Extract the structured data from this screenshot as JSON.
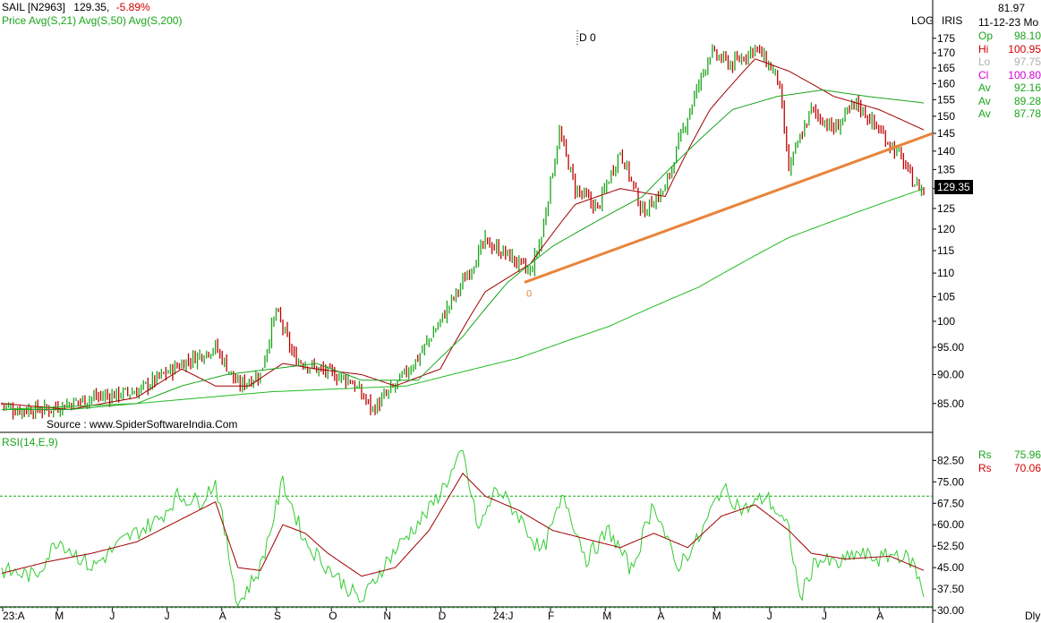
{
  "header": {
    "symbol": "SAIL [N2963]",
    "last": "129.35,",
    "change": "-5.89%",
    "price_label": "Price",
    "avg21_label": "Avg(S,21)",
    "avg50_label": "Avg(S,50)",
    "avg200_label": "Avg(S,200)",
    "marker": "D 0"
  },
  "top_right": {
    "log_label": "LOG",
    "iris_label": "IRIS",
    "volume_value": "81.97",
    "date": "11-12-23 Mo",
    "period": "Dly"
  },
  "ohlc_panel": [
    {
      "label": "Op",
      "value": "98.10",
      "color": "#1aa51a"
    },
    {
      "label": "Hi",
      "value": "100.95",
      "color": "#d00000"
    },
    {
      "label": "Lo",
      "value": "97.75",
      "color": "#b0b0b0"
    },
    {
      "label": "Cl",
      "value": "100.80",
      "color": "#d000d0"
    },
    {
      "label": "Av",
      "value": "92.16",
      "color": "#1aa51a"
    },
    {
      "label": "Av",
      "value": "89.28",
      "color": "#1aa51a"
    },
    {
      "label": "Av",
      "value": "87.78",
      "color": "#1aa51a"
    }
  ],
  "rsi_panel": {
    "label": "RSI(14,E,9)",
    "rs1_label": "Rs",
    "rs1_value": "75.96",
    "rs2_label": "Rs",
    "rs2_value": "70.06"
  },
  "source": "Source : www.SpiderSoftwareIndia.Com",
  "last_price_tag": "129.35",
  "trendline_label": "0",
  "colors": {
    "up": "#1aa51a",
    "down": "#c00000",
    "ma21": "#a00000",
    "ma50": "#1aa51a",
    "ma200": "#22bb22",
    "trendline": "#e8843a",
    "rsi": "#33cc33",
    "rsi_signal": "#a00000",
    "guide": "#1aa51a"
  },
  "chart_data": [
    {
      "type": "candlestick",
      "title": "SAIL [N2963]",
      "scale": "log",
      "x_ticks": [
        "23:A",
        "M",
        "J",
        "J",
        "A",
        "S",
        "O",
        "N",
        "D",
        "24:J",
        "F",
        "M",
        "A",
        "M",
        "J",
        "J",
        "A"
      ],
      "y_ticks": [
        175,
        170,
        165,
        160,
        155,
        150,
        145,
        140,
        135,
        130,
        125,
        120,
        115,
        110,
        105,
        100,
        95.0,
        90.0,
        85.0
      ],
      "ylim": [
        81,
        179
      ],
      "series": [
        {
          "name": "Price",
          "key_points": [
            [
              0,
              85
            ],
            [
              5,
              84
            ],
            [
              20,
              84
            ],
            [
              40,
              86
            ],
            [
              60,
              87
            ],
            [
              80,
              92
            ],
            [
              95,
              95
            ],
            [
              105,
              88
            ],
            [
              115,
              90
            ],
            [
              122,
              102
            ],
            [
              130,
              93
            ],
            [
              140,
              91
            ],
            [
              155,
              89
            ],
            [
              165,
              84
            ],
            [
              175,
              88
            ],
            [
              185,
              93
            ],
            [
              195,
              100
            ],
            [
              205,
              108
            ],
            [
              215,
              117
            ],
            [
              225,
              114
            ],
            [
              235,
              110
            ],
            [
              240,
              118
            ],
            [
              248,
              145
            ],
            [
              255,
              130
            ],
            [
              265,
              125
            ],
            [
              275,
              140
            ],
            [
              285,
              124
            ],
            [
              295,
              130
            ],
            [
              305,
              150
            ],
            [
              315,
              170
            ],
            [
              325,
              166
            ],
            [
              335,
              172
            ],
            [
              345,
              162
            ],
            [
              350,
              135
            ],
            [
              360,
              152
            ],
            [
              370,
              146
            ],
            [
              380,
              154
            ],
            [
              390,
              146
            ],
            [
              400,
              138
            ],
            [
              405,
              132
            ],
            [
              410,
              129.35
            ]
          ]
        },
        {
          "name": "Avg(S,21)",
          "key_points": [
            [
              0,
              85
            ],
            [
              30,
              84
            ],
            [
              60,
              86
            ],
            [
              80,
              91
            ],
            [
              95,
              88
            ],
            [
              110,
              88
            ],
            [
              125,
              92
            ],
            [
              140,
              91
            ],
            [
              160,
              90
            ],
            [
              175,
              88
            ],
            [
              195,
              91
            ],
            [
              215,
              106
            ],
            [
              235,
              112
            ],
            [
              255,
              126
            ],
            [
              275,
              130
            ],
            [
              295,
              128
            ],
            [
              315,
              152
            ],
            [
              335,
              168
            ],
            [
              350,
              164
            ],
            [
              370,
              156
            ],
            [
              390,
              152
            ],
            [
              410,
              146
            ]
          ]
        },
        {
          "name": "Avg(S,50)",
          "key_points": [
            [
              0,
              84
            ],
            [
              30,
              84
            ],
            [
              60,
              85
            ],
            [
              80,
              88
            ],
            [
              100,
              90
            ],
            [
              120,
              91
            ],
            [
              140,
              92
            ],
            [
              160,
              89
            ],
            [
              185,
              89
            ],
            [
              205,
              97
            ],
            [
              225,
              108
            ],
            [
              245,
              116
            ],
            [
              265,
              122
            ],
            [
              285,
              128
            ],
            [
              305,
              140
            ],
            [
              325,
              152
            ],
            [
              345,
              156
            ],
            [
              365,
              158
            ],
            [
              385,
              156
            ],
            [
              410,
              154
            ]
          ]
        },
        {
          "name": "Avg(S,200)",
          "key_points": [
            [
              0,
              84
            ],
            [
              60,
              85
            ],
            [
              120,
              87
            ],
            [
              180,
              88
            ],
            [
              230,
              93
            ],
            [
              270,
              99
            ],
            [
              310,
              107
            ],
            [
              350,
              118
            ],
            [
              390,
              126
            ],
            [
              410,
              130
            ]
          ]
        },
        {
          "name": "Trendline",
          "points": [
            [
              248,
              108
            ],
            [
              410,
              145
            ]
          ]
        }
      ]
    },
    {
      "type": "line",
      "title": "RSI(14,E,9)",
      "y_ticks": [
        82.5,
        75.0,
        67.5,
        60.0,
        52.5,
        45.0,
        37.5,
        30.0
      ],
      "ylim": [
        30,
        87
      ],
      "reference_line": 70,
      "series": [
        {
          "name": "RSI",
          "key_points": [
            [
              0,
              44
            ],
            [
              15,
              42
            ],
            [
              25,
              55
            ],
            [
              40,
              45
            ],
            [
              55,
              55
            ],
            [
              70,
              62
            ],
            [
              78,
              70
            ],
            [
              88,
              68
            ],
            [
              95,
              75
            ],
            [
              105,
              32
            ],
            [
              115,
              45
            ],
            [
              125,
              75
            ],
            [
              135,
              54
            ],
            [
              145,
              45
            ],
            [
              160,
              33
            ],
            [
              170,
              46
            ],
            [
              180,
              56
            ],
            [
              190,
              65
            ],
            [
              200,
              78
            ],
            [
              205,
              85
            ],
            [
              212,
              58
            ],
            [
              220,
              73
            ],
            [
              230,
              63
            ],
            [
              240,
              50
            ],
            [
              250,
              70
            ],
            [
              260,
              48
            ],
            [
              270,
              58
            ],
            [
              280,
              44
            ],
            [
              290,
              68
            ],
            [
              300,
              45
            ],
            [
              310,
              55
            ],
            [
              320,
              73
            ],
            [
              330,
              65
            ],
            [
              340,
              70
            ],
            [
              350,
              58
            ],
            [
              355,
              34
            ],
            [
              362,
              48
            ],
            [
              372,
              46
            ],
            [
              380,
              50
            ],
            [
              390,
              48
            ],
            [
              398,
              50
            ],
            [
              405,
              47
            ],
            [
              410,
              36
            ]
          ]
        },
        {
          "name": "Signal",
          "key_points": [
            [
              0,
              43
            ],
            [
              20,
              47
            ],
            [
              40,
              50
            ],
            [
              60,
              54
            ],
            [
              80,
              62
            ],
            [
              95,
              68
            ],
            [
              105,
              45
            ],
            [
              115,
              44
            ],
            [
              125,
              60
            ],
            [
              135,
              57
            ],
            [
              145,
              50
            ],
            [
              160,
              42
            ],
            [
              175,
              45
            ],
            [
              190,
              58
            ],
            [
              205,
              78
            ],
            [
              215,
              70
            ],
            [
              230,
              65
            ],
            [
              245,
              58
            ],
            [
              260,
              55
            ],
            [
              275,
              52
            ],
            [
              290,
              57
            ],
            [
              305,
              52
            ],
            [
              320,
              63
            ],
            [
              335,
              67
            ],
            [
              350,
              58
            ],
            [
              360,
              50
            ],
            [
              375,
              48
            ],
            [
              395,
              49
            ],
            [
              410,
              44
            ]
          ]
        }
      ]
    }
  ]
}
